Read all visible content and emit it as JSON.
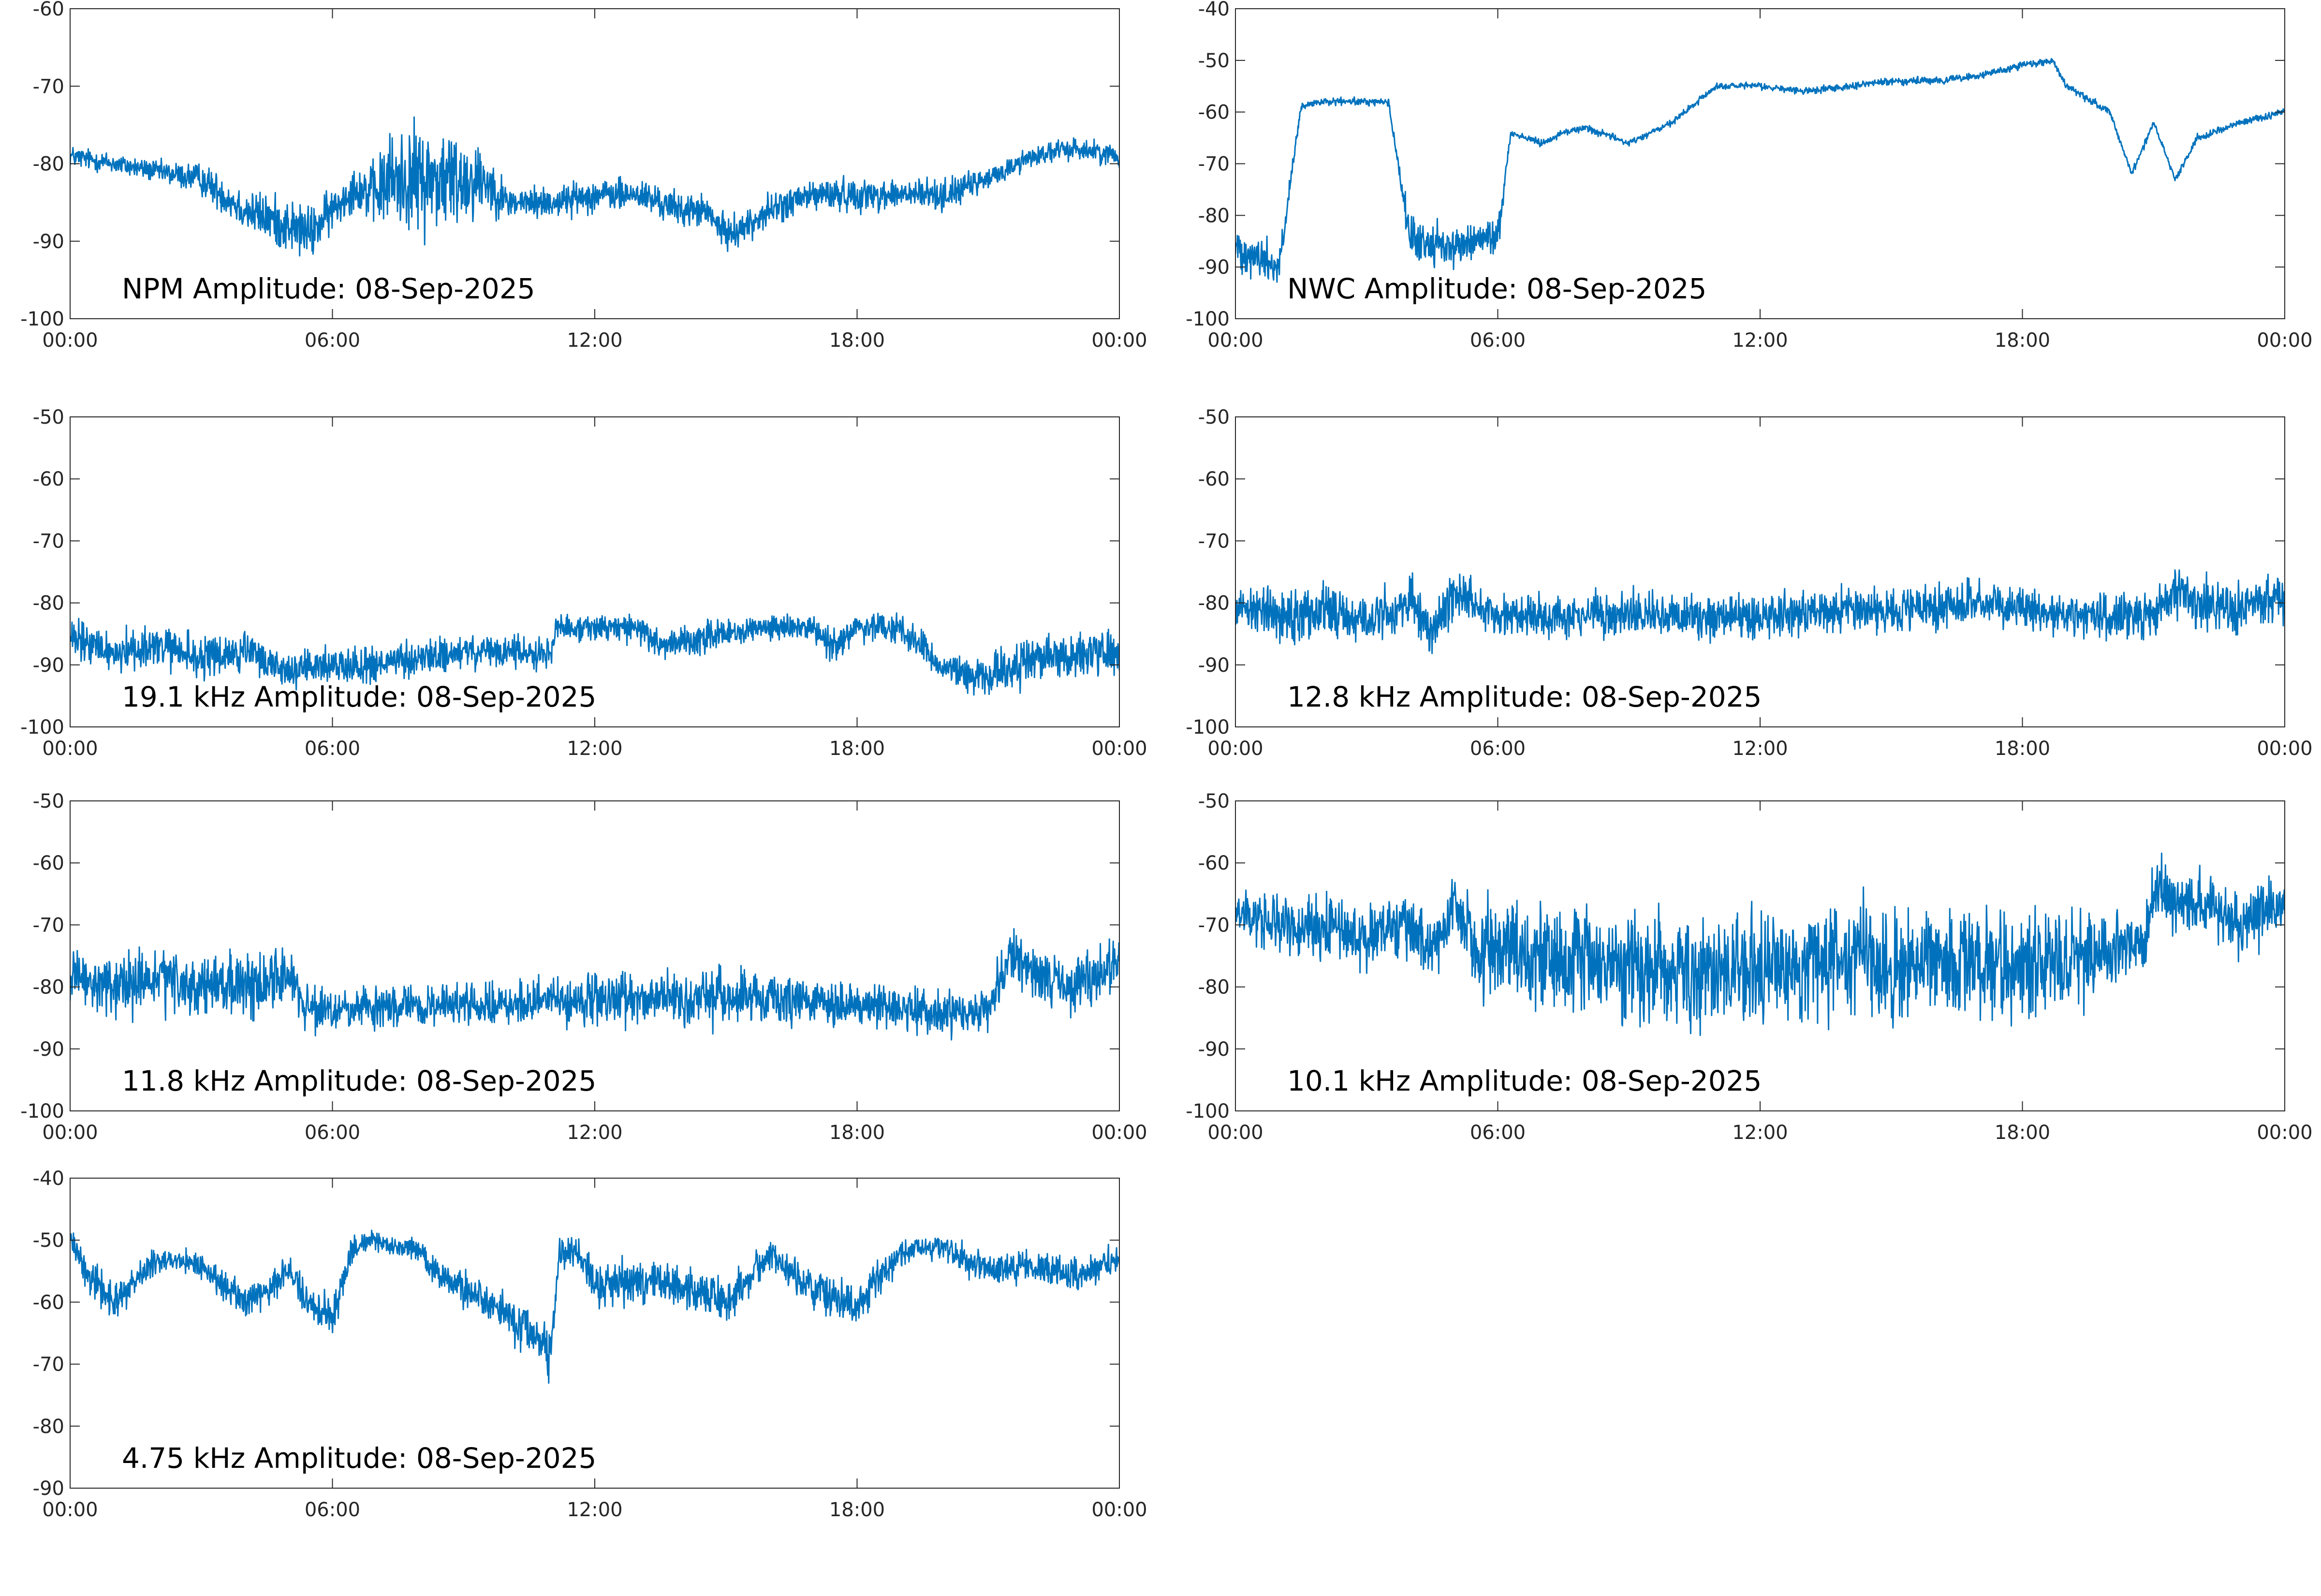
{
  "figure": {
    "background": "#ffffff",
    "axis_color": "#262626",
    "trace_color": "#0072bd"
  },
  "chart_data": [
    {
      "type": "line",
      "title": "NPM Amplitude: 08-Sep-2025",
      "ylim": [
        -100,
        -60
      ],
      "yticks": [
        "-60",
        "-70",
        "-80",
        "-90",
        "-100"
      ],
      "ytick_values": [
        -60,
        -70,
        -80,
        -90,
        -100
      ],
      "xticks": [
        "00:00",
        "06:00",
        "12:00",
        "18:00",
        "00:00"
      ],
      "xtick_hours": [
        0,
        6,
        12,
        18,
        24
      ],
      "grid": false,
      "series": [
        {
          "hours": [
            0,
            1,
            2,
            3,
            4,
            5,
            5.5,
            6,
            6.5,
            7,
            7.3,
            8,
            8.5,
            9,
            9.5,
            10,
            11,
            12,
            13,
            14,
            14.5,
            15,
            15.5,
            16,
            16.5,
            17,
            18,
            19,
            20,
            21,
            22,
            23,
            24
          ],
          "center": [
            -79,
            -80,
            -81,
            -82,
            -86,
            -88,
            -89,
            -86,
            -83,
            -84,
            -82,
            -82,
            -82,
            -82,
            -82,
            -85,
            -85,
            -84,
            -84,
            -86,
            -86,
            -89,
            -88,
            -86,
            -85,
            -84,
            -84,
            -84,
            -84,
            -82,
            -79,
            -78,
            -79
          ],
          "spread": [
            2,
            2,
            2,
            3,
            4,
            5,
            5,
            4,
            4,
            6,
            9,
            10,
            10,
            9,
            6,
            3,
            3,
            3,
            3,
            3,
            3,
            3,
            3,
            3,
            3,
            3,
            3,
            3,
            3,
            2,
            2,
            2,
            2
          ]
        }
      ]
    },
    {
      "type": "line",
      "title": "NWC Amplitude: 08-Sep-2025",
      "ylim": [
        -100,
        -40
      ],
      "yticks": [
        "-40",
        "-50",
        "-60",
        "-70",
        "-80",
        "-90",
        "-100"
      ],
      "ytick_values": [
        -40,
        -50,
        -60,
        -70,
        -80,
        -90,
        -100
      ],
      "xticks": [
        "00:00",
        "06:00",
        "12:00",
        "18:00",
        "00:00"
      ],
      "xtick_hours": [
        0,
        6,
        12,
        18,
        24
      ],
      "grid": false,
      "series": [
        {
          "hours": [
            0,
            1,
            1.5,
            2,
            3,
            3.5,
            4,
            5,
            6,
            6.3,
            7,
            7.5,
            8,
            9,
            10,
            11,
            12,
            13,
            14,
            15,
            16,
            17,
            18,
            18.7,
            19,
            20,
            20.5,
            21,
            21.5,
            22,
            23,
            24
          ],
          "center": [
            -86,
            -90,
            -59,
            -58,
            -58,
            -58,
            -85,
            -86,
            -84,
            -64,
            -66,
            -64,
            -63,
            -66,
            -62,
            -55,
            -55,
            -56,
            -55,
            -54,
            -54,
            -53,
            -51,
            -50,
            -55,
            -60,
            -72,
            -62,
            -73,
            -65,
            -62,
            -60
          ],
          "spread": [
            6,
            6,
            1,
            1,
            1,
            1,
            6,
            5,
            5,
            1,
            1,
            1,
            1,
            1,
            1,
            1,
            1,
            1,
            1,
            1,
            1,
            1,
            1,
            1,
            1,
            1,
            1,
            1,
            1,
            1,
            1,
            1
          ]
        }
      ]
    },
    {
      "type": "line",
      "title": "19.1 kHz Amplitude: 08-Sep-2025",
      "ylim": [
        -100,
        -50
      ],
      "yticks": [
        "-50",
        "-60",
        "-70",
        "-80",
        "-90",
        "-100"
      ],
      "ytick_values": [
        -50,
        -60,
        -70,
        -80,
        -90,
        -100
      ],
      "xticks": [
        "00:00",
        "06:00",
        "12:00",
        "18:00",
        "00:00"
      ],
      "xtick_hours": [
        0,
        6,
        12,
        18,
        24
      ],
      "grid": false,
      "series": [
        {
          "hours": [
            0,
            1,
            2,
            3,
            4,
            5,
            6,
            7,
            8,
            9,
            10,
            11,
            11.1,
            12,
            13,
            13.5,
            14,
            15,
            16,
            17,
            17.5,
            18,
            19,
            19.5,
            20,
            21,
            22,
            23,
            24
          ],
          "center": [
            -86,
            -88,
            -87,
            -89,
            -88,
            -91,
            -90,
            -90,
            -89,
            -88,
            -88,
            -88,
            -84,
            -84,
            -84,
            -87,
            -86,
            -85,
            -84,
            -84,
            -87,
            -84,
            -84,
            -87,
            -91,
            -92,
            -89,
            -88,
            -88
          ],
          "spread": [
            5,
            5,
            5,
            5,
            5,
            4,
            4,
            4,
            4,
            4,
            4,
            4,
            3,
            3,
            3,
            4,
            4,
            3,
            3,
            3,
            4,
            3,
            3,
            4,
            4,
            5,
            5,
            5,
            5
          ]
        }
      ]
    },
    {
      "type": "line",
      "title": "12.8 kHz Amplitude: 08-Sep-2025",
      "ylim": [
        -100,
        -50
      ],
      "yticks": [
        "-50",
        "-60",
        "-70",
        "-80",
        "-90",
        "-100"
      ],
      "ytick_values": [
        -50,
        -60,
        -70,
        -80,
        -90,
        -100
      ],
      "xticks": [
        "00:00",
        "06:00",
        "12:00",
        "18:00",
        "00:00"
      ],
      "xtick_hours": [
        0,
        6,
        12,
        18,
        24
      ],
      "grid": false,
      "series": [
        {
          "hours": [
            0,
            1,
            2,
            3,
            4,
            4.5,
            5,
            6,
            8,
            10,
            12,
            14,
            16,
            17,
            18,
            19,
            20,
            21,
            21.5,
            22,
            23,
            24
          ],
          "center": [
            -80,
            -82,
            -81,
            -83,
            -80,
            -85,
            -78,
            -82,
            -82,
            -82,
            -82,
            -81,
            -81,
            -80,
            -81,
            -82,
            -82,
            -82,
            -78,
            -80,
            -81,
            -79
          ],
          "spread": [
            6,
            6,
            6,
            6,
            6,
            6,
            6,
            5,
            5,
            5,
            5,
            5,
            5,
            5,
            5,
            5,
            5,
            5,
            6,
            6,
            6,
            6
          ]
        }
      ]
    },
    {
      "type": "line",
      "title": "11.8 kHz Amplitude: 08-Sep-2025",
      "ylim": [
        -100,
        -50
      ],
      "yticks": [
        "-50",
        "-60",
        "-70",
        "-80",
        "-90",
        "-100"
      ],
      "ytick_values": [
        -50,
        -60,
        -70,
        -80,
        -90,
        -100
      ],
      "xticks": [
        "00:00",
        "06:00",
        "12:00",
        "18:00",
        "00:00"
      ],
      "xtick_hours": [
        0,
        6,
        12,
        18,
        24
      ],
      "grid": false,
      "series": [
        {
          "hours": [
            0,
            1,
            2,
            3,
            4,
            5,
            5.5,
            6,
            8,
            10,
            12,
            14,
            16,
            18,
            20,
            21,
            21.5,
            22,
            23,
            24
          ],
          "center": [
            -79,
            -80,
            -79,
            -80,
            -80,
            -78,
            -84,
            -84,
            -83,
            -83,
            -82,
            -82,
            -82,
            -83,
            -84,
            -84,
            -75,
            -78,
            -80,
            -76
          ],
          "spread": [
            7,
            7,
            7,
            7,
            7,
            7,
            5,
            5,
            5,
            5,
            6,
            6,
            6,
            5,
            5,
            5,
            6,
            6,
            6,
            6
          ]
        }
      ]
    },
    {
      "type": "line",
      "title": "10.1 kHz Amplitude: 08-Sep-2025",
      "ylim": [
        -100,
        -50
      ],
      "yticks": [
        "-50",
        "-60",
        "-70",
        "-80",
        "-90",
        "-100"
      ],
      "ytick_values": [
        -50,
        -60,
        -70,
        -80,
        -90,
        -100
      ],
      "xticks": [
        "00:00",
        "06:00",
        "12:00",
        "18:00",
        "00:00"
      ],
      "xtick_hours": [
        0,
        6,
        12,
        18,
        24
      ],
      "grid": false,
      "series": [
        {
          "hours": [
            0,
            1,
            2,
            3,
            4,
            4.5,
            5,
            5.5,
            6,
            8,
            10,
            12,
            14,
            16,
            18,
            19.5,
            20,
            20.8,
            21,
            21.5,
            22,
            23,
            24
          ],
          "center": [
            -68,
            -70,
            -70,
            -72,
            -70,
            -74,
            -66,
            -74,
            -74,
            -76,
            -77,
            -77,
            -76,
            -77,
            -76,
            -75,
            -75,
            -72,
            -64,
            -66,
            -66,
            -70,
            -66
          ],
          "spread": [
            7,
            7,
            7,
            7,
            7,
            7,
            7,
            12,
            12,
            13,
            13,
            13,
            13,
            13,
            13,
            12,
            8,
            7,
            7,
            7,
            7,
            7,
            7
          ]
        }
      ]
    },
    {
      "type": "line",
      "title": "4.75 kHz Amplitude: 08-Sep-2025",
      "ylim": [
        -90,
        -40
      ],
      "yticks": [
        "-40",
        "-50",
        "-60",
        "-70",
        "-80",
        "-90"
      ],
      "ytick_values": [
        -40,
        -50,
        -60,
        -70,
        -80,
        -90
      ],
      "xticks": [
        "00:00",
        "06:00",
        "12:00",
        "18:00",
        "00:00"
      ],
      "xtick_hours": [
        0,
        6,
        12,
        18,
        24
      ],
      "grid": false,
      "series": [
        {
          "hours": [
            0,
            0.5,
            1,
            2,
            3,
            4,
            4.5,
            5,
            5.5,
            6,
            6.5,
            7,
            8,
            8.5,
            9,
            10,
            10.5,
            11,
            11.2,
            11.6,
            12,
            13,
            14,
            15,
            16,
            16.5,
            17,
            18,
            19,
            20,
            21,
            22,
            23,
            24
          ],
          "center": [
            -50,
            -56,
            -60,
            -53,
            -54,
            -60,
            -58,
            -55,
            -60,
            -62,
            -51,
            -50,
            -52,
            -56,
            -58,
            -62,
            -65,
            -68,
            -52,
            -52,
            -57,
            -57,
            -57,
            -60,
            -52,
            -55,
            -58,
            -60,
            -52,
            -51,
            -55,
            -54,
            -56,
            -53
          ],
          "spread": [
            3,
            4,
            4,
            3,
            3,
            4,
            4,
            4,
            5,
            5,
            3,
            2,
            3,
            4,
            4,
            5,
            6,
            6,
            4,
            4,
            5,
            5,
            5,
            5,
            4,
            4,
            5,
            5,
            3,
            3,
            4,
            4,
            4,
            4
          ]
        }
      ]
    }
  ]
}
